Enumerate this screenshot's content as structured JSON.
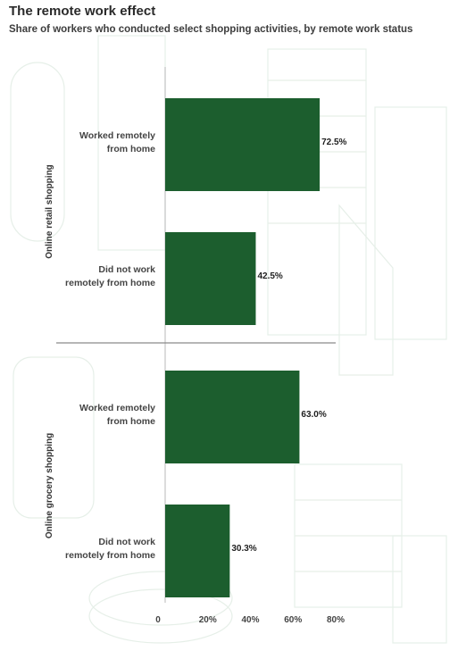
{
  "header": {
    "title": "The remote work effect",
    "subtitle": "Share of workers who conducted select shopping activities, by remote work status"
  },
  "colors": {
    "bar": "#1c5e2e",
    "axis": "#b8b8b8",
    "background_art": "#eaf2ec"
  },
  "chart_data": {
    "type": "bar",
    "orientation": "horizontal",
    "title": "The remote work effect",
    "subtitle": "Share of workers who conducted select shopping activities, by remote work status",
    "groups": [
      {
        "name": "Online retail shopping",
        "bars": [
          {
            "label": [
              "Worked remotely",
              "from home"
            ],
            "value": 72.5,
            "value_label": "72.5%"
          },
          {
            "label": [
              "Did not work",
              "remotely from home"
            ],
            "value": 42.5,
            "value_label": "42.5%"
          }
        ]
      },
      {
        "name": "Online grocery shopping",
        "bars": [
          {
            "label": [
              "Worked remotely",
              "from home"
            ],
            "value": 63.0,
            "value_label": "63.0%"
          },
          {
            "label": [
              "Did not work",
              "remotely from home"
            ],
            "value": 30.3,
            "value_label": "30.3%"
          }
        ]
      }
    ],
    "xlim": [
      0,
      80
    ],
    "xticks": [
      0,
      20,
      40,
      60,
      80
    ],
    "xtick_labels": [
      "0",
      "20%",
      "40%",
      "60%",
      "80%"
    ],
    "grid": false,
    "legend": "none"
  }
}
